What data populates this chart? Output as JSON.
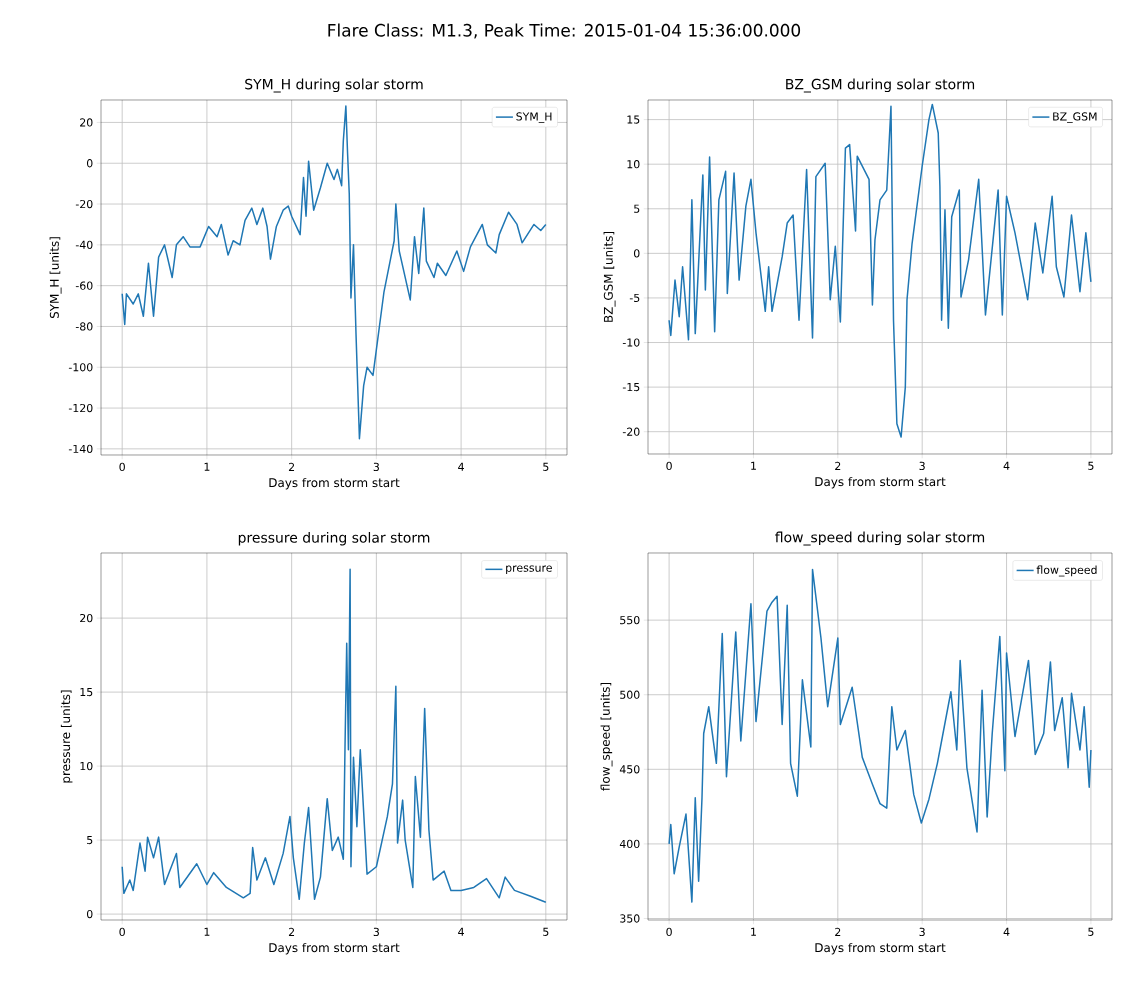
{
  "chart_data": [
    {
      "type": "line",
      "title": "SYM_H during solar storm",
      "xlabel": "Days from storm start",
      "ylabel": "SYM_H [units]",
      "annotations": [
        "Flare Class: M1.3, Peak Time: 2015-01-04 15:36:00.000"
      ],
      "grid": true,
      "legend": "top right",
      "marker": "none",
      "line_style": "solid",
      "xlim": [
        -0.25,
        5.25
      ],
      "ylim": [
        -143,
        31
      ],
      "xticks": [
        0,
        1,
        2,
        3,
        4,
        5
      ],
      "yticks": [
        -140,
        -120,
        -100,
        -80,
        -60,
        -40,
        -20,
        0,
        20
      ],
      "series": [
        {
          "name": "SYM_H",
          "color": "#1f77b4",
          "x": [
            0,
            0.03,
            0.05,
            0.13,
            0.19,
            0.25,
            0.31,
            0.37,
            0.43,
            0.5,
            0.59,
            0.64,
            0.72,
            0.8,
            0.92,
            1.02,
            1.12,
            1.17,
            1.25,
            1.31,
            1.39,
            1.45,
            1.53,
            1.59,
            1.66,
            1.71,
            1.75,
            1.82,
            1.9,
            1.96,
            2.0,
            2.1,
            2.14,
            2.17,
            2.2,
            2.26,
            2.34,
            2.42,
            2.5,
            2.54,
            2.59,
            2.61,
            2.64,
            2.66,
            2.68,
            2.7,
            2.73,
            2.76,
            2.8,
            2.85,
            2.89,
            2.96,
            3.09,
            3.21,
            3.23,
            3.27,
            3.4,
            3.45,
            3.5,
            3.56,
            3.59,
            3.68,
            3.72,
            3.82,
            3.95,
            4.03,
            4.11,
            4.25,
            4.31,
            4.41,
            4.45,
            4.56,
            4.66,
            4.72,
            4.86,
            4.94,
            5.0
          ],
          "values": [
            -64,
            -79,
            -64,
            -69,
            -64,
            -75,
            -49,
            -75,
            -46,
            -40,
            -56,
            -40,
            -36,
            -41,
            -41,
            -31,
            -36,
            -30,
            -45,
            -38,
            -40,
            -28,
            -22,
            -30,
            -22,
            -31,
            -47,
            -31,
            -23,
            -21,
            -26,
            -35,
            -7,
            -26,
            1,
            -23,
            -12,
            0,
            -8,
            -3,
            -11,
            11,
            28,
            5,
            -15,
            -66,
            -40,
            -84,
            -135,
            -109,
            -100,
            -104,
            -63,
            -38,
            -20,
            -43,
            -67,
            -36,
            -54,
            -22,
            -48,
            -56,
            -49,
            -55,
            -43,
            -53,
            -41,
            -30,
            -40,
            -44,
            -35,
            -24,
            -30,
            -39,
            -30,
            -33,
            -30
          ]
        }
      ]
    },
    {
      "type": "line",
      "title": "BZ_GSM during solar storm",
      "xlabel": "Days from storm start",
      "ylabel": "BZ_GSM [units]",
      "grid": true,
      "legend": "top right",
      "marker": "none",
      "line_style": "solid",
      "xlim": [
        -0.25,
        5.25
      ],
      "ylim": [
        -22.5,
        17.2
      ],
      "xticks": [
        0,
        1,
        2,
        3,
        4,
        5
      ],
      "yticks": [
        -20,
        -15,
        -10,
        -5,
        0,
        5,
        10,
        15
      ],
      "series": [
        {
          "name": "BZ_GSM",
          "color": "#1f77b4",
          "x": [
            0,
            0.02,
            0.07,
            0.12,
            0.16,
            0.23,
            0.27,
            0.31,
            0.4,
            0.43,
            0.48,
            0.54,
            0.59,
            0.67,
            0.69,
            0.77,
            0.83,
            0.91,
            0.97,
            1.03,
            1.14,
            1.18,
            1.22,
            1.34,
            1.4,
            1.47,
            1.54,
            1.63,
            1.7,
            1.74,
            1.85,
            1.91,
            1.97,
            2.03,
            2.09,
            2.14,
            2.21,
            2.23,
            2.37,
            2.41,
            2.44,
            2.5,
            2.58,
            2.63,
            2.66,
            2.7,
            2.75,
            2.8,
            2.82,
            2.88,
            3.0,
            3.08,
            3.12,
            3.19,
            3.21,
            3.23,
            3.27,
            3.31,
            3.35,
            3.44,
            3.46,
            3.55,
            3.67,
            3.75,
            3.9,
            3.95,
            4.0,
            4.1,
            4.25,
            4.34,
            4.43,
            4.54,
            4.59,
            4.68,
            4.77,
            4.87,
            4.94,
            5.0
          ],
          "values": [
            -7.5,
            -9.2,
            -3,
            -7.1,
            -1.5,
            -9.7,
            6,
            -9,
            8.8,
            -4.1,
            10.8,
            -8.8,
            6,
            9.2,
            -4.5,
            9,
            -3,
            5.3,
            8.3,
            2.3,
            -6.5,
            -1.5,
            -6.5,
            -0.4,
            3.4,
            4.3,
            -7.5,
            9.4,
            -9.5,
            8.6,
            10.1,
            -5.2,
            0.8,
            -7.7,
            11.8,
            12.2,
            2.5,
            10.9,
            8.3,
            -5.8,
            1.5,
            6,
            7.1,
            16.5,
            -7.5,
            -19.1,
            -20.6,
            -15,
            -5.2,
            1.1,
            9.8,
            15,
            16.7,
            13.5,
            7.5,
            -7.5,
            4.9,
            -8.4,
            4.1,
            7.1,
            -4.9,
            -0.7,
            8.3,
            -6.9,
            7.1,
            -6.9,
            6.4,
            2.3,
            -5.2,
            3.4,
            -2.2,
            6.4,
            -1.5,
            -4.9,
            4.3,
            -4.3,
            2.3,
            -3.2
          ]
        }
      ]
    },
    {
      "type": "line",
      "title": "pressure during solar storm",
      "xlabel": "Days from storm start",
      "ylabel": "pressure [units]",
      "grid": true,
      "legend": "top right",
      "marker": "none",
      "line_style": "solid",
      "xlim": [
        -0.25,
        5.25
      ],
      "ylim": [
        -0.4,
        24.4
      ],
      "xticks": [
        0,
        1,
        2,
        3,
        4,
        5
      ],
      "yticks": [
        0,
        5,
        10,
        15,
        20
      ],
      "series": [
        {
          "name": "pressure",
          "color": "#1f77b4",
          "x": [
            0,
            0.02,
            0.09,
            0.13,
            0.21,
            0.27,
            0.3,
            0.37,
            0.43,
            0.5,
            0.64,
            0.68,
            0.88,
            1.0,
            1.08,
            1.23,
            1.43,
            1.51,
            1.54,
            1.59,
            1.69,
            1.79,
            1.9,
            1.98,
            2.02,
            2.09,
            2.15,
            2.2,
            2.27,
            2.34,
            2.42,
            2.48,
            2.55,
            2.61,
            2.63,
            2.65,
            2.67,
            2.69,
            2.7,
            2.73,
            2.77,
            2.81,
            2.89,
            3.0,
            3.13,
            3.19,
            3.23,
            3.25,
            3.31,
            3.34,
            3.43,
            3.46,
            3.52,
            3.57,
            3.62,
            3.67,
            3.8,
            3.88,
            4.0,
            4.15,
            4.3,
            4.45,
            4.52,
            4.63,
            4.82,
            5.0
          ],
          "values": [
            3.2,
            1.4,
            2.3,
            1.6,
            4.8,
            2.9,
            5.2,
            3.8,
            5.2,
            2.0,
            4.1,
            1.8,
            3.4,
            2.0,
            2.8,
            1.8,
            1.1,
            1.4,
            4.5,
            2.3,
            3.8,
            2.0,
            4.1,
            6.6,
            3.8,
            1.0,
            4.8,
            7.2,
            1.0,
            2.5,
            7.8,
            4.3,
            5.2,
            3.7,
            11.3,
            18.3,
            11.1,
            23.3,
            3.2,
            10.6,
            5.9,
            11.1,
            2.7,
            3.2,
            6.6,
            8.8,
            15.4,
            4.8,
            7.7,
            5.0,
            1.8,
            9.3,
            5.2,
            13.9,
            5.7,
            2.3,
            2.9,
            1.6,
            1.6,
            1.8,
            2.4,
            1.1,
            2.5,
            1.6,
            1.2,
            0.8
          ]
        }
      ]
    },
    {
      "type": "line",
      "title": "flow_speed during solar storm",
      "xlabel": "Days from storm start",
      "ylabel": "flow_speed [units]",
      "grid": true,
      "legend": "top right",
      "marker": "none",
      "line_style": "solid",
      "xlim": [
        -0.25,
        5.25
      ],
      "ylim": [
        349,
        595
      ],
      "xticks": [
        0,
        1,
        2,
        3,
        4,
        5
      ],
      "yticks": [
        350,
        400,
        450,
        500,
        550
      ],
      "series": [
        {
          "name": "flow_speed",
          "color": "#1f77b4",
          "x": [
            0,
            0.02,
            0.06,
            0.12,
            0.2,
            0.27,
            0.31,
            0.35,
            0.39,
            0.41,
            0.47,
            0.56,
            0.63,
            0.68,
            0.79,
            0.85,
            0.97,
            1.03,
            1.16,
            1.22,
            1.28,
            1.34,
            1.4,
            1.44,
            1.52,
            1.58,
            1.68,
            1.7,
            1.8,
            1.88,
            2.0,
            2.03,
            2.17,
            2.29,
            2.41,
            2.5,
            2.58,
            2.64,
            2.7,
            2.8,
            2.9,
            2.99,
            3.08,
            3.18,
            3.24,
            3.34,
            3.41,
            3.45,
            3.53,
            3.65,
            3.71,
            3.77,
            3.83,
            3.92,
            3.98,
            4.0,
            4.1,
            4.26,
            4.34,
            4.44,
            4.52,
            4.57,
            4.66,
            4.73,
            4.77,
            4.87,
            4.92,
            4.98,
            5.0
          ],
          "values": [
            400,
            413,
            380,
            398,
            420,
            361,
            431,
            375,
            431,
            474,
            492,
            454,
            541,
            445,
            542,
            469,
            561,
            482,
            556,
            562,
            566,
            480,
            560,
            454,
            432,
            510,
            465,
            584,
            538,
            492,
            538,
            480,
            505,
            458,
            440,
            427,
            424,
            492,
            463,
            476,
            433,
            414,
            430,
            454,
            472,
            502,
            463,
            523,
            451,
            408,
            503,
            418,
            474,
            539,
            449,
            528,
            472,
            523,
            460,
            474,
            522,
            476,
            498,
            451,
            501,
            463,
            492,
            438,
            463
          ]
        }
      ]
    }
  ]
}
